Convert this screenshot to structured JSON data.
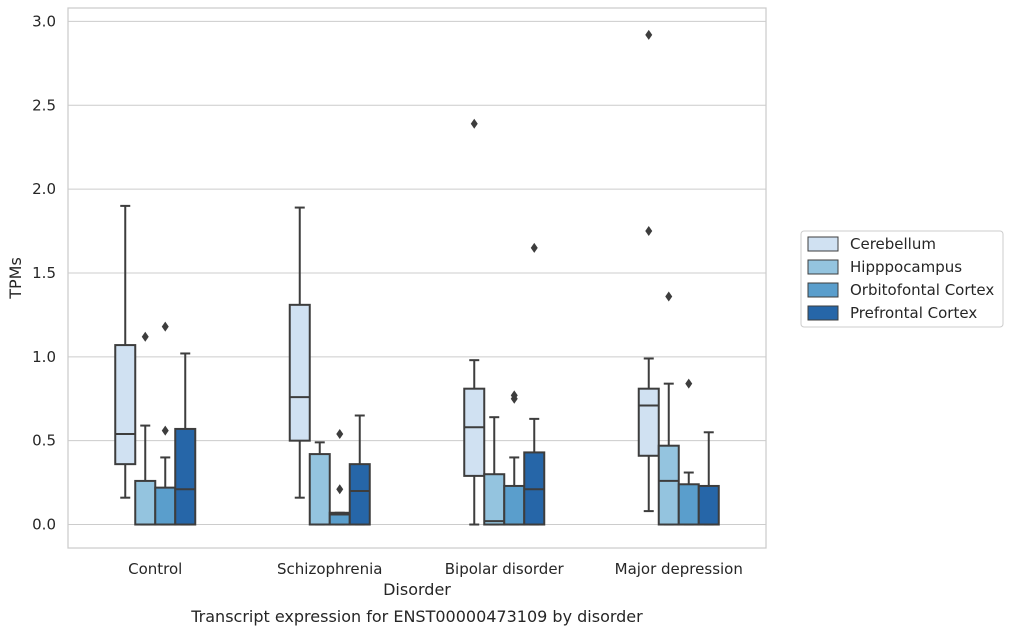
{
  "chart_data": {
    "type": "box",
    "title": "",
    "caption": "Transcript expression for ENST00000473109 by disorder",
    "xlabel": "Disorder",
    "ylabel": "TPMs",
    "ylim": [
      -0.14,
      3.08
    ],
    "yticks": [
      "0.0",
      "0.5",
      "1.0",
      "1.5",
      "2.0",
      "2.5",
      "3.0"
    ],
    "grid": "horizontal",
    "legend_position": "right",
    "categories": [
      "Control",
      "Schizophrenia",
      "Bipolar disorder",
      "Major depression"
    ],
    "series": [
      {
        "name": "Cerebellum",
        "color": "#d0e1f2",
        "boxes": [
          {
            "whisker_low": 0.16,
            "q1": 0.36,
            "median": 0.54,
            "q3": 1.07,
            "whisker_high": 1.9,
            "outliers": []
          },
          {
            "whisker_low": 0.16,
            "q1": 0.5,
            "median": 0.76,
            "q3": 1.31,
            "whisker_high": 1.89,
            "outliers": []
          },
          {
            "whisker_low": 0.0,
            "q1": 0.29,
            "median": 0.58,
            "q3": 0.81,
            "whisker_high": 0.98,
            "outliers": [
              2.39
            ]
          },
          {
            "whisker_low": 0.08,
            "q1": 0.41,
            "median": 0.71,
            "q3": 0.81,
            "whisker_high": 0.99,
            "outliers": [
              2.92,
              1.75
            ]
          }
        ]
      },
      {
        "name": "Hipppocampus",
        "color": "#94c4df",
        "boxes": [
          {
            "whisker_low": 0.0,
            "q1": 0.0,
            "median": 0.0,
            "q3": 0.26,
            "whisker_high": 0.59,
            "outliers": [
              1.12
            ]
          },
          {
            "whisker_low": 0.0,
            "q1": 0.0,
            "median": 0.0,
            "q3": 0.42,
            "whisker_high": 0.49,
            "outliers": []
          },
          {
            "whisker_low": 0.0,
            "q1": 0.0,
            "median": 0.02,
            "q3": 0.3,
            "whisker_high": 0.64,
            "outliers": []
          },
          {
            "whisker_low": 0.0,
            "q1": 0.0,
            "median": 0.26,
            "q3": 0.47,
            "whisker_high": 0.84,
            "outliers": [
              1.36
            ]
          }
        ]
      },
      {
        "name": "Orbitofontal Cortex",
        "color": "#5a9ecc",
        "boxes": [
          {
            "whisker_low": 0.0,
            "q1": 0.0,
            "median": 0.0,
            "q3": 0.22,
            "whisker_high": 0.4,
            "outliers": [
              1.18,
              0.56
            ]
          },
          {
            "whisker_low": 0.0,
            "q1": 0.0,
            "median": 0.06,
            "q3": 0.07,
            "whisker_high": 0.07,
            "outliers": [
              0.54,
              0.21
            ]
          },
          {
            "whisker_low": 0.0,
            "q1": 0.0,
            "median": 0.0,
            "q3": 0.23,
            "whisker_high": 0.4,
            "outliers": [
              0.77,
              0.75
            ]
          },
          {
            "whisker_low": 0.0,
            "q1": 0.0,
            "median": 0.0,
            "q3": 0.24,
            "whisker_high": 0.31,
            "outliers": [
              0.84
            ]
          }
        ]
      },
      {
        "name": "Prefrontal Cortex",
        "color": "#2666a8",
        "boxes": [
          {
            "whisker_low": 0.0,
            "q1": 0.0,
            "median": 0.21,
            "q3": 0.57,
            "whisker_high": 1.02,
            "outliers": []
          },
          {
            "whisker_low": 0.0,
            "q1": 0.0,
            "median": 0.2,
            "q3": 0.36,
            "whisker_high": 0.65,
            "outliers": []
          },
          {
            "whisker_low": 0.0,
            "q1": 0.0,
            "median": 0.21,
            "q3": 0.43,
            "whisker_high": 0.63,
            "outliers": [
              1.65
            ]
          },
          {
            "whisker_low": 0.0,
            "q1": 0.0,
            "median": 0.0,
            "q3": 0.23,
            "whisker_high": 0.55,
            "outliers": []
          }
        ]
      }
    ]
  }
}
